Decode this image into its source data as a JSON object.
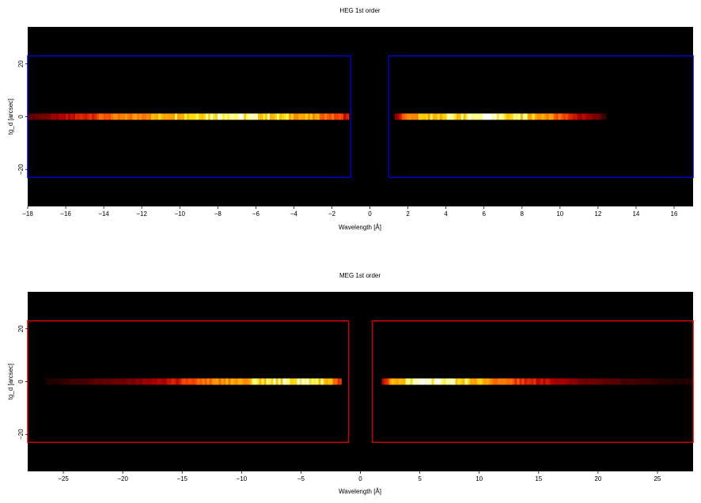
{
  "chart_data": [
    {
      "type": "heatmap",
      "title": "HEG 1st order",
      "xlabel": "Wavelength [Å]",
      "ylabel": "tg_d [arcsec]",
      "xlim": [
        -18,
        17
      ],
      "ylim": [
        -34,
        34
      ],
      "xticks": [
        -18,
        -16,
        -14,
        -12,
        -10,
        -8,
        -6,
        -4,
        -2,
        0,
        2,
        4,
        6,
        8,
        10,
        12,
        14,
        16
      ],
      "yticks": [
        -20,
        0,
        20
      ],
      "grid": false,
      "box_color": "#0000cc",
      "regions": [
        {
          "x": [
            -18.5,
            -1.0
          ],
          "y": [
            -23,
            23
          ]
        },
        {
          "x": [
            1.0,
            17.5
          ],
          "y": [
            -23,
            23
          ]
        }
      ],
      "streaks": [
        {
          "x": [
            -18.0,
            -1.1
          ],
          "y": [
            -1.2,
            1.2
          ],
          "peak_x": -7.5,
          "profile": [
            [
              -18.0,
              0.18
            ],
            [
              -17.0,
              0.25
            ],
            [
              -16.0,
              0.35
            ],
            [
              -15.0,
              0.45
            ],
            [
              -14.0,
              0.55
            ],
            [
              -13.0,
              0.6
            ],
            [
              -12.0,
              0.68
            ],
            [
              -11.0,
              0.75
            ],
            [
              -10.0,
              0.82
            ],
            [
              -9.0,
              0.88
            ],
            [
              -8.0,
              0.95
            ],
            [
              -7.5,
              1.0
            ],
            [
              -7.0,
              0.93
            ],
            [
              -6.0,
              0.88
            ],
            [
              -5.0,
              0.82
            ],
            [
              -4.0,
              0.76
            ],
            [
              -3.0,
              0.68
            ],
            [
              -2.0,
              0.55
            ],
            [
              -1.2,
              0.42
            ]
          ]
        },
        {
          "x": [
            1.3,
            12.4
          ],
          "y": [
            -1.2,
            1.2
          ],
          "peak_x": 6.5,
          "profile": [
            [
              1.3,
              0.3
            ],
            [
              2.0,
              0.62
            ],
            [
              3.0,
              0.78
            ],
            [
              4.0,
              0.85
            ],
            [
              5.0,
              0.9
            ],
            [
              6.0,
              0.95
            ],
            [
              6.5,
              0.98
            ],
            [
              7.0,
              0.92
            ],
            [
              8.0,
              0.84
            ],
            [
              9.0,
              0.72
            ],
            [
              10.0,
              0.55
            ],
            [
              11.0,
              0.38
            ],
            [
              12.0,
              0.22
            ],
            [
              12.4,
              0.12
            ]
          ]
        }
      ]
    },
    {
      "type": "heatmap",
      "title": "MEG 1st order",
      "xlabel": "Wavelength [Å]",
      "ylabel": "tg_d [arcsec]",
      "xlim": [
        -28,
        28
      ],
      "ylim": [
        -34,
        34
      ],
      "xticks": [
        -25,
        -20,
        -15,
        -10,
        -5,
        0,
        5,
        10,
        15,
        20,
        25
      ],
      "yticks": [
        -20,
        0,
        20
      ],
      "grid": false,
      "box_color": "#cc0000",
      "regions": [
        {
          "x": [
            -28.5,
            -1.0
          ],
          "y": [
            -23,
            23
          ]
        },
        {
          "x": [
            1.0,
            28.5
          ],
          "y": [
            -23,
            23
          ]
        }
      ],
      "streaks": [
        {
          "x": [
            -26.5,
            -1.6
          ],
          "y": [
            -1.2,
            1.2
          ],
          "peak_x": -5.0,
          "profile": [
            [
              -26.5,
              0.05
            ],
            [
              -24.0,
              0.12
            ],
            [
              -22.0,
              0.18
            ],
            [
              -20.0,
              0.24
            ],
            [
              -18.0,
              0.3
            ],
            [
              -16.0,
              0.4
            ],
            [
              -14.0,
              0.52
            ],
            [
              -12.0,
              0.65
            ],
            [
              -10.0,
              0.75
            ],
            [
              -8.0,
              0.84
            ],
            [
              -6.0,
              0.92
            ],
            [
              -5.0,
              0.98
            ],
            [
              -4.0,
              0.9
            ],
            [
              -3.0,
              0.8
            ],
            [
              -2.0,
              0.6
            ],
            [
              -1.6,
              0.4
            ]
          ]
        },
        {
          "x": [
            1.8,
            28.0
          ],
          "y": [
            -1.2,
            1.2
          ],
          "peak_x": 6.5,
          "profile": [
            [
              1.8,
              0.35
            ],
            [
              3.0,
              0.8
            ],
            [
              5.0,
              0.92
            ],
            [
              6.5,
              1.0
            ],
            [
              8.0,
              0.9
            ],
            [
              10.0,
              0.72
            ],
            [
              12.0,
              0.58
            ],
            [
              14.0,
              0.45
            ],
            [
              16.0,
              0.35
            ],
            [
              18.0,
              0.27
            ],
            [
              20.0,
              0.2
            ],
            [
              22.0,
              0.15
            ],
            [
              24.0,
              0.11
            ],
            [
              26.0,
              0.08
            ],
            [
              28.0,
              0.05
            ]
          ]
        }
      ]
    }
  ]
}
